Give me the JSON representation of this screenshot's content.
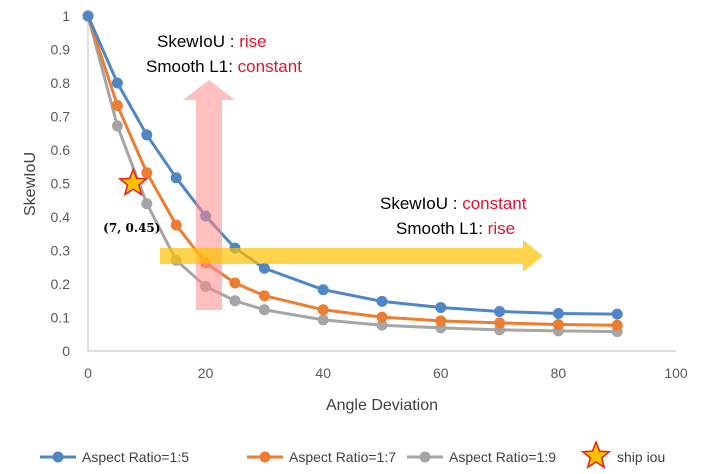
{
  "chart_data": {
    "type": "line",
    "title": "",
    "xlabel": "Angle Deviation",
    "ylabel": "SkewIoU",
    "xlim": [
      0,
      100
    ],
    "ylim": [
      0,
      1
    ],
    "x_ticks": [
      0,
      20,
      40,
      60,
      80,
      100
    ],
    "y_ticks": [
      0,
      0.1,
      0.2,
      0.3,
      0.4,
      0.5,
      0.6,
      0.7,
      0.8,
      0.9,
      1
    ],
    "x": [
      0,
      5,
      10,
      15,
      20,
      25,
      30,
      40,
      50,
      60,
      70,
      80,
      90
    ],
    "series": [
      {
        "name": "Aspect Ratio=1:5",
        "color": "#4f86c6",
        "values": [
          1.0,
          0.8,
          0.645,
          0.517,
          0.403,
          0.307,
          0.247,
          0.183,
          0.148,
          0.13,
          0.118,
          0.112,
          0.11
        ]
      },
      {
        "name": "Aspect Ratio=1:7",
        "color": "#ed7d31",
        "values": [
          1.0,
          0.733,
          0.532,
          0.376,
          0.263,
          0.203,
          0.165,
          0.123,
          0.101,
          0.09,
          0.084,
          0.079,
          0.077
        ]
      },
      {
        "name": "Aspect Ratio=1:9",
        "color": "#a5a5a5",
        "values": [
          1.0,
          0.672,
          0.44,
          0.271,
          0.193,
          0.15,
          0.123,
          0.093,
          0.077,
          0.069,
          0.063,
          0.06,
          0.058
        ]
      }
    ],
    "highlight_point": {
      "name": "ship iou",
      "x": 7,
      "y": 0.45,
      "label": "(7, 0.45)",
      "color": "#ffc000",
      "stroke": "#e02020"
    },
    "annotations": [
      {
        "id": "a1",
        "line1_key": "SkewIoU : ",
        "line1_val": "rise",
        "line2_key": "Smooth L1: ",
        "line2_val": "constant"
      },
      {
        "id": "a2",
        "line1_key": "SkewIoU : ",
        "line1_val": "constant",
        "line2_key": "Smooth L1: ",
        "line2_val": "rise"
      }
    ],
    "legend": "bottom",
    "grid": false
  },
  "colors": {
    "key_text": "#000000",
    "value_text": "#e0142c",
    "arrow_red": "#ff8a8a",
    "arrow_yellow": "#ffc000",
    "axis": "#bfbfbf"
  }
}
